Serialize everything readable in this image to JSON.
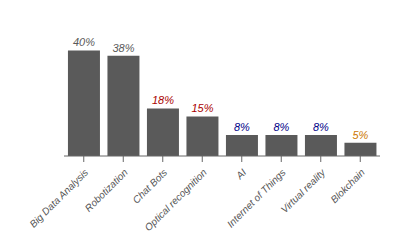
{
  "chart_data": {
    "type": "bar",
    "categories": [
      "Big Data Analysis",
      "Robotization",
      "Chat Bots",
      "Optical recognition",
      "AI",
      "Internet of Things",
      "Virtual reality",
      "Blokchain"
    ],
    "values": [
      40,
      38,
      18,
      15,
      8,
      8,
      8,
      5
    ],
    "value_labels": [
      "40%",
      "38%",
      "18%",
      "15%",
      "8%",
      "8%",
      "8%",
      "5%"
    ],
    "data_labels": true,
    "color": "#5a5a5a",
    "colors": [
      "#5a5a5a",
      "#5a5a5a",
      "#aa0000",
      "#aa0000",
      "#000088",
      "#000088",
      "#000088",
      "#cc7700"
    ],
    "ylim": [
      0,
      50
    ],
    "tick_labels": "x",
    "grid": false
  }
}
